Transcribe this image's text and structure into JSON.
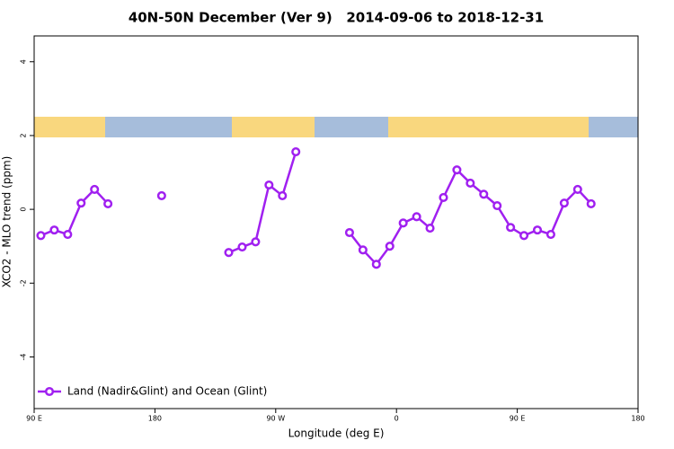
{
  "chart_data": {
    "type": "line",
    "title": "40N-50N December (Ver 9)   2014-09-06 to 2018-12-31",
    "x_label": "Longitude (deg E)",
    "y_label": "XCO2 - MLO trend (ppm)",
    "x": [
      95,
      105,
      115,
      125,
      135,
      145,
      165,
      185,
      215,
      235,
      245,
      255,
      265,
      275,
      285,
      305,
      325,
      335,
      345,
      355,
      365,
      375,
      385,
      395,
      405,
      415,
      425,
      435,
      445,
      455,
      465,
      475,
      485,
      495,
      505
    ],
    "series": [
      {
        "name": "Land (Nadir&Glint) and Ocean (Glint)",
        "color": "#a020f0",
        "values": [
          -0.71,
          -0.56,
          -0.68,
          0.17,
          0.54,
          0.15,
          null,
          0.37,
          null,
          -1.17,
          -1.02,
          -0.88,
          0.66,
          0.37,
          1.56,
          null,
          -0.63,
          -1.1,
          -1.49,
          -1.0,
          -0.37,
          -0.2,
          -0.51,
          0.32,
          1.07,
          0.71,
          0.41,
          0.1,
          -0.49,
          -0.71,
          -0.56,
          -0.68,
          0.17,
          0.54,
          0.15
        ]
      }
    ],
    "xlim": [
      90,
      540
    ],
    "xticks": [
      {
        "value": 90,
        "label": "90 E"
      },
      {
        "value": 180,
        "label": "180"
      },
      {
        "value": 270,
        "label": "90 W"
      },
      {
        "value": 360,
        "label": "0"
      },
      {
        "value": 450,
        "label": "90 E"
      },
      {
        "value": 540,
        "label": "180"
      }
    ],
    "ylim": [
      -5.4,
      4.7
    ],
    "yticks": [
      -4,
      -2,
      0,
      2,
      4
    ],
    "legend": "bottom-left"
  }
}
